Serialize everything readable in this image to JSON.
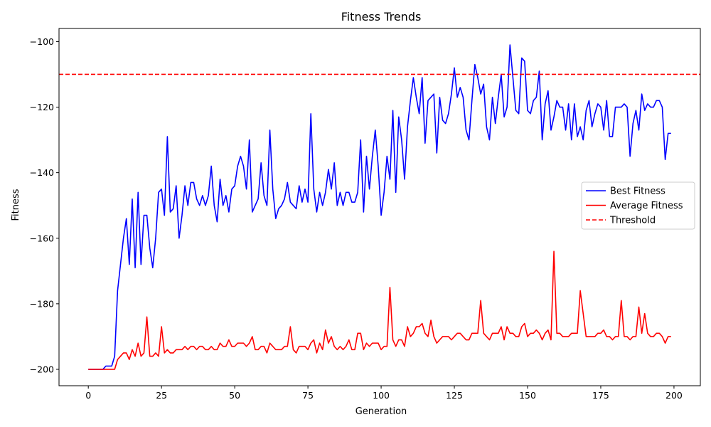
{
  "chart_data": {
    "type": "line",
    "title": "Fitness Trends",
    "xlabel": "Generation",
    "ylabel": "Fitness",
    "xlim": [
      -10,
      209
    ],
    "ylim": [
      -205,
      -96
    ],
    "xticks": [
      0,
      25,
      50,
      75,
      100,
      125,
      150,
      175,
      200
    ],
    "yticks": [
      -200,
      -180,
      -160,
      -140,
      -120,
      -100
    ],
    "xtick_labels": [
      "0",
      "25",
      "50",
      "75",
      "100",
      "125",
      "150",
      "175",
      "200"
    ],
    "ytick_labels": [
      "−200",
      "−180",
      "−160",
      "−140",
      "−120",
      "−100"
    ],
    "legend_position": "center-right",
    "threshold": {
      "name": "Threshold",
      "value": -110,
      "color": "#ff0000",
      "style": "dashed"
    },
    "series": [
      {
        "name": "Best Fitness",
        "color": "#0000ff",
        "values": [
          -200,
          -200,
          -200,
          -200,
          -200,
          -200,
          -199,
          -199,
          -199,
          -196,
          -176,
          -168,
          -160,
          -154,
          -168,
          -148,
          -169,
          -146,
          -168,
          -153,
          -153,
          -163,
          -169,
          -160,
          -146,
          -145,
          -153,
          -129,
          -152,
          -151,
          -144,
          -160,
          -153,
          -144,
          -150,
          -143,
          -143,
          -148,
          -150,
          -147,
          -150,
          -147,
          -138,
          -150,
          -155,
          -142,
          -150,
          -147,
          -152,
          -145,
          -144,
          -138,
          -135,
          -138,
          -145,
          -130,
          -152,
          -150,
          -148,
          -137,
          -147,
          -150,
          -127,
          -145,
          -154,
          -151,
          -150,
          -148,
          -143,
          -149,
          -150,
          -151,
          -144,
          -149,
          -145,
          -149,
          -122,
          -145,
          -152,
          -146,
          -150,
          -146,
          -139,
          -145,
          -137,
          -150,
          -146,
          -150,
          -146,
          -146,
          -149,
          -149,
          -146,
          -130,
          -152,
          -135,
          -145,
          -135,
          -127,
          -138,
          -153,
          -146,
          -135,
          -142,
          -121,
          -146,
          -123,
          -130,
          -142,
          -126,
          -118,
          -111,
          -117,
          -122,
          -111,
          -131,
          -118,
          -117,
          -116,
          -134,
          -117,
          -124,
          -125,
          -122,
          -116,
          -108,
          -117,
          -114,
          -117,
          -127,
          -130,
          -118,
          -107,
          -111,
          -116,
          -113,
          -126,
          -130,
          -117,
          -125,
          -117,
          -110,
          -123,
          -120,
          -101,
          -111,
          -121,
          -122,
          -105,
          -106,
          -121,
          -122,
          -118,
          -117,
          -109,
          -130,
          -119,
          -115,
          -127,
          -123,
          -118,
          -120,
          -120,
          -127,
          -119,
          -130,
          -119,
          -129,
          -126,
          -130,
          -121,
          -118,
          -126,
          -122,
          -119,
          -120,
          -127,
          -118,
          -129,
          -129,
          -120,
          -120,
          -120,
          -119,
          -120,
          -135,
          -125,
          -121,
          -127,
          -116,
          -121,
          -119,
          -120,
          -120,
          -118,
          -118,
          -120,
          -136,
          -128,
          -128
        ]
      },
      {
        "name": "Average Fitness",
        "color": "#ff0000",
        "values": [
          -200,
          -200,
          -200,
          -200,
          -200,
          -200,
          -200,
          -200,
          -200,
          -200,
          -197,
          -196,
          -195,
          -195,
          -197,
          -194,
          -196,
          -192,
          -196,
          -195,
          -184,
          -196,
          -196,
          -195,
          -196,
          -187,
          -195,
          -194,
          -195,
          -195,
          -194,
          -194,
          -194,
          -193,
          -194,
          -193,
          -193,
          -194,
          -193,
          -193,
          -194,
          -194,
          -193,
          -194,
          -194,
          -192,
          -193,
          -193,
          -191,
          -193,
          -193,
          -192,
          -192,
          -192,
          -193,
          -192,
          -190,
          -194,
          -194,
          -193,
          -193,
          -195,
          -192,
          -193,
          -194,
          -194,
          -194,
          -193,
          -193,
          -187,
          -194,
          -195,
          -193,
          -193,
          -193,
          -194,
          -192,
          -191,
          -195,
          -192,
          -194,
          -188,
          -192,
          -190,
          -193,
          -194,
          -193,
          -194,
          -193,
          -191,
          -194,
          -194,
          -189,
          -189,
          -194,
          -192,
          -193,
          -192,
          -192,
          -192,
          -194,
          -193,
          -193,
          -175,
          -191,
          -193,
          -191,
          -191,
          -193,
          -187,
          -190,
          -189,
          -187,
          -187,
          -186,
          -189,
          -190,
          -185,
          -190,
          -192,
          -191,
          -190,
          -190,
          -190,
          -191,
          -190,
          -189,
          -189,
          -190,
          -191,
          -191,
          -189,
          -189,
          -189,
          -179,
          -189,
          -190,
          -191,
          -189,
          -189,
          -189,
          -187,
          -191,
          -187,
          -189,
          -189,
          -190,
          -190,
          -187,
          -186,
          -190,
          -189,
          -189,
          -188,
          -189,
          -191,
          -189,
          -188,
          -191,
          -164,
          -189,
          -189,
          -190,
          -190,
          -190,
          -189,
          -189,
          -189,
          -176,
          -183,
          -190,
          -190,
          -190,
          -190,
          -189,
          -189,
          -188,
          -190,
          -190,
          -191,
          -190,
          -190,
          -179,
          -190,
          -190,
          -191,
          -190,
          -190,
          -181,
          -189,
          -183,
          -189,
          -190,
          -190,
          -189,
          -189,
          -190,
          -192,
          -190,
          -190
        ]
      }
    ]
  }
}
